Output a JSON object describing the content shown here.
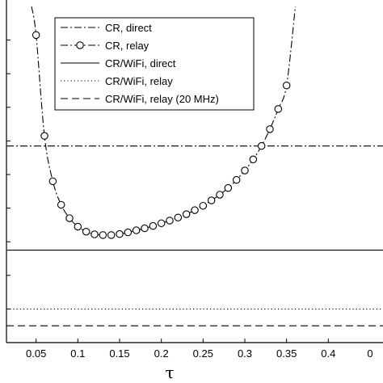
{
  "chart_data": {
    "type": "line",
    "xlabel": "τ",
    "ylabel": "",
    "xlim": [
      0.0145,
      0.4655
    ],
    "ylim": [
      0,
      10
    ],
    "x_ticks": [
      0.05,
      0.1,
      0.15,
      0.2,
      0.25,
      0.3,
      0.35,
      0.4
    ],
    "x_tick_labels": [
      "0.05",
      "0.1",
      "0.15",
      "0.2",
      "0.25",
      "0.3",
      "0.35",
      "0.4"
    ],
    "y_tick_labels": [],
    "legend_position": "top-left",
    "series": [
      {
        "name": "CR, direct",
        "style": "dash-dot",
        "y_constant": 5.85
      },
      {
        "name": "CR, relay",
        "style": "dash-dot-circle",
        "x": [
          0.05,
          0.06,
          0.07,
          0.08,
          0.09,
          0.1,
          0.11,
          0.12,
          0.13,
          0.14,
          0.15,
          0.16,
          0.17,
          0.18,
          0.19,
          0.2,
          0.21,
          0.22,
          0.23,
          0.24,
          0.25,
          0.26,
          0.27,
          0.28,
          0.29,
          0.3,
          0.31,
          0.32,
          0.33,
          0.34,
          0.35
        ],
        "y": [
          9.15,
          6.15,
          4.8,
          4.1,
          3.7,
          3.45,
          3.3,
          3.22,
          3.2,
          3.2,
          3.23,
          3.28,
          3.34,
          3.4,
          3.47,
          3.55,
          3.63,
          3.72,
          3.82,
          3.94,
          4.07,
          4.23,
          4.4,
          4.6,
          4.84,
          5.12,
          5.45,
          5.85,
          6.35,
          6.95,
          7.65
        ],
        "curve_ends": [
          {
            "x": 0.0445,
            "y": 10
          },
          {
            "x": 0.3605,
            "y": 10
          }
        ]
      },
      {
        "name": "CR/WiFi, direct",
        "style": "solid",
        "y_constant": 2.75
      },
      {
        "name": "CR/WiFi, relay",
        "style": "dotted",
        "y_constant": 1.0
      },
      {
        "name": "CR/WiFi, relay (20 MHz)",
        "style": "dashed",
        "y_constant": 0.5
      }
    ]
  }
}
